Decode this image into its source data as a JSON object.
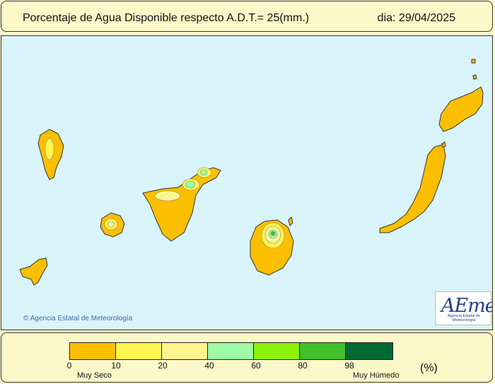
{
  "header": {
    "title": "Porcentaje de Agua Disponible respecto A.D.T.= 25(mm.)",
    "date": "dia: 29/04/2025"
  },
  "map": {
    "copyright": "© Agencia Estatal de Meteorología",
    "logo": {
      "name": "AEmet",
      "subtitle": "Agencia Estatal de Meteorología"
    },
    "sea_color": "#d9f4fb",
    "islands": [
      "La Palma",
      "La Gomera",
      "El Hierro",
      "Tenerife",
      "Gran Canaria",
      "Fuerteventura",
      "Lanzarote"
    ]
  },
  "legend": {
    "colors": [
      "#fbbf00",
      "#fdf550",
      "#fdf68f",
      "#9dfba5",
      "#8cf20a",
      "#40c02a",
      "#006a32"
    ],
    "ticks": [
      "0",
      "10",
      "20",
      "40",
      "60",
      "80",
      "98"
    ],
    "low_label": "Muy Seco",
    "high_label": "Muy Húmedo",
    "unit": "(%)"
  }
}
